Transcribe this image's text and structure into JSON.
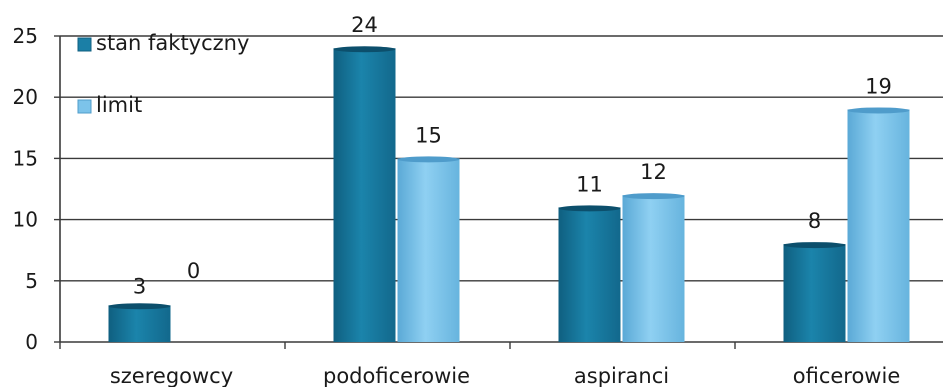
{
  "chart_data": {
    "type": "bar",
    "categories": [
      "szeregowcy",
      "podoficerowie",
      "aspiranci",
      "oficerowie"
    ],
    "series": [
      {
        "name": "stan faktyczny",
        "values": [
          3,
          24,
          11,
          8
        ],
        "color": "#1b7fa6"
      },
      {
        "name": "limit",
        "values": [
          0,
          15,
          12,
          19
        ],
        "color": "#7cc3ea"
      }
    ],
    "y_ticks": [
      0,
      5,
      10,
      15,
      20,
      25
    ],
    "ylim": [
      0,
      25
    ],
    "grid": true,
    "legend_position": "top-left",
    "data_labels": true
  }
}
